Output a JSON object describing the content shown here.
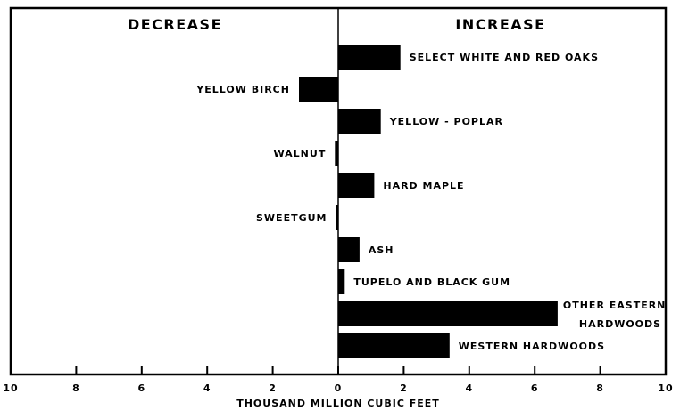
{
  "chart_data": {
    "type": "bar",
    "orientation": "horizontal",
    "left_heading": "DECREASE",
    "right_heading": "INCREASE",
    "xlabel": "THOUSAND MILLION CUBIC FEET",
    "xlim": [
      -10,
      10
    ],
    "xticks": [
      -10,
      -8,
      -6,
      -4,
      -2,
      0,
      2,
      4,
      6,
      8,
      10
    ],
    "xtick_labels": [
      "10",
      "8",
      "6",
      "4",
      "2",
      "0",
      "2",
      "4",
      "6",
      "8",
      "10"
    ],
    "categories": [
      {
        "label": "SELECT WHITE AND RED OAKS",
        "value": 1.9
      },
      {
        "label": "YELLOW BIRCH",
        "value": -1.2
      },
      {
        "label": "YELLOW - POPLAR",
        "value": 1.3
      },
      {
        "label": "WALNUT",
        "value": -0.1
      },
      {
        "label": "HARD MAPLE",
        "value": 1.1
      },
      {
        "label": "SWEETGUM",
        "value": -0.05
      },
      {
        "label": "ASH",
        "value": 0.65
      },
      {
        "label": "TUPELO AND BLACK GUM",
        "value": 0.2
      },
      {
        "label": [
          "OTHER EASTERN",
          "HARDWOODS"
        ],
        "value": 6.7
      },
      {
        "label": "WESTERN HARDWOODS",
        "value": 3.4
      }
    ],
    "grid": false
  }
}
